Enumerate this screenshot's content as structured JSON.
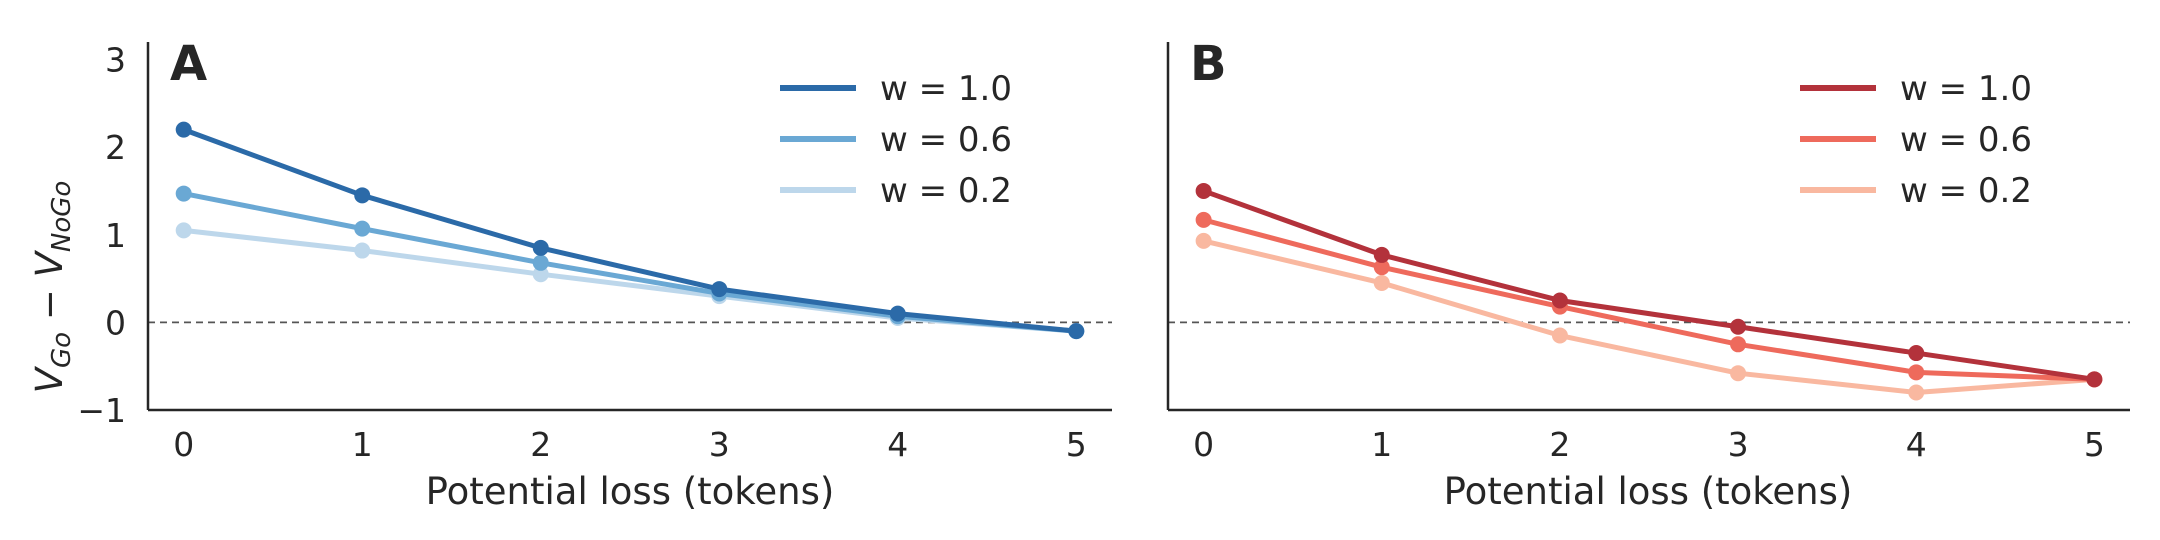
{
  "chart_data": [
    {
      "type": "line",
      "panel_label": "A",
      "xlabel": "Potential loss (tokens)",
      "ylabel": "V_Go − V_NoGo",
      "ylabel_main": "V",
      "ylabel_sub1": "Go",
      "ylabel_minus": " − ",
      "ylabel_sub2": "NoGo",
      "x": [
        0,
        1,
        2,
        3,
        4,
        5
      ],
      "x_tick_labels": [
        "0",
        "1",
        "2",
        "3",
        "4",
        "5"
      ],
      "y_ticks": [
        3,
        2,
        1,
        0,
        -1
      ],
      "y_tick_labels": [
        "3",
        "2",
        "1",
        "0",
        "−1"
      ],
      "xlim": [
        -0.2,
        5.2
      ],
      "ylim": [
        -1,
        3.2
      ],
      "reference_line": 0,
      "legend_position": "top-right",
      "series": [
        {
          "name": "w = 1.0",
          "color": "#2b6aa8",
          "values": [
            2.2,
            1.45,
            0.85,
            0.38,
            0.1,
            -0.1
          ]
        },
        {
          "name": "w = 0.6",
          "color": "#6aa8d4",
          "values": [
            1.47,
            1.07,
            0.68,
            0.33,
            0.07,
            -0.1
          ]
        },
        {
          "name": "w = 0.2",
          "color": "#bdd7eb",
          "values": [
            1.05,
            0.82,
            0.55,
            0.3,
            0.05,
            -0.1
          ]
        }
      ]
    },
    {
      "type": "line",
      "panel_label": "B",
      "xlabel": "Potential loss (tokens)",
      "x": [
        0,
        1,
        2,
        3,
        4,
        5
      ],
      "x_tick_labels": [
        "0",
        "1",
        "2",
        "3",
        "4",
        "5"
      ],
      "xlim": [
        -0.2,
        5.2
      ],
      "ylim": [
        -1,
        3.2
      ],
      "reference_line": 0,
      "legend_position": "top-right",
      "series": [
        {
          "name": "w = 1.0",
          "color": "#b3323b",
          "values": [
            1.5,
            0.77,
            0.25,
            -0.05,
            -0.35,
            -0.65
          ]
        },
        {
          "name": "w = 0.6",
          "color": "#ee6a5c",
          "values": [
            1.17,
            0.63,
            0.18,
            -0.25,
            -0.57,
            -0.65
          ]
        },
        {
          "name": "w = 0.2",
          "color": "#f9b8a0",
          "values": [
            0.93,
            0.45,
            -0.15,
            -0.58,
            -0.8,
            -0.65
          ]
        }
      ]
    }
  ]
}
